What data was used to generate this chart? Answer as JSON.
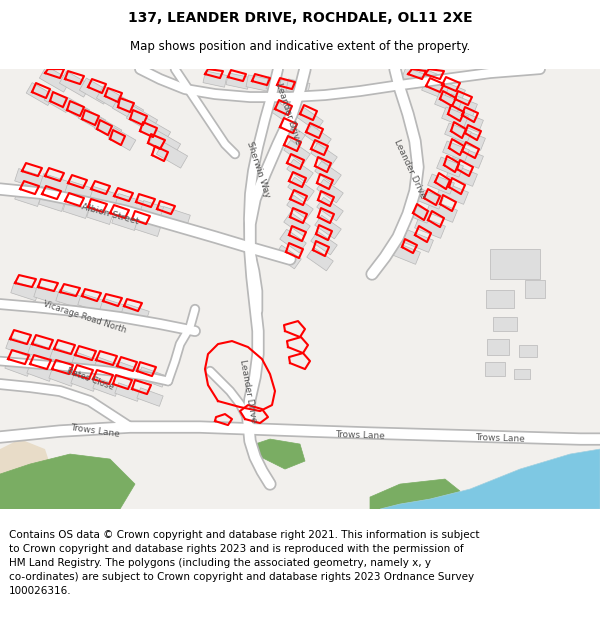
{
  "title": "137, LEANDER DRIVE, ROCHDALE, OL11 2XE",
  "subtitle": "Map shows position and indicative extent of the property.",
  "footer": "Contains OS data © Crown copyright and database right 2021. This information is subject\nto Crown copyright and database rights 2023 and is reproduced with the permission of\nHM Land Registry. The polygons (including the associated geometry, namely x, y\nco-ordinates) are subject to Crown copyright and database rights 2023 Ordnance Survey\n100026316.",
  "title_fontsize": 10,
  "subtitle_fontsize": 8.5,
  "footer_fontsize": 7.5,
  "bg_color": "#ffffff",
  "map_bg": "#f2f0ed",
  "road_color": "#ffffff",
  "road_outline": "#c8c8c8",
  "building_fill": "#dedede",
  "building_outline": "#c0c0c0",
  "highlight_color": "#ff0000",
  "green_color": "#7aad63",
  "blue_color": "#7ec8e3",
  "beige_color": "#e8dcc8",
  "water_outline": "#a0d0e0"
}
